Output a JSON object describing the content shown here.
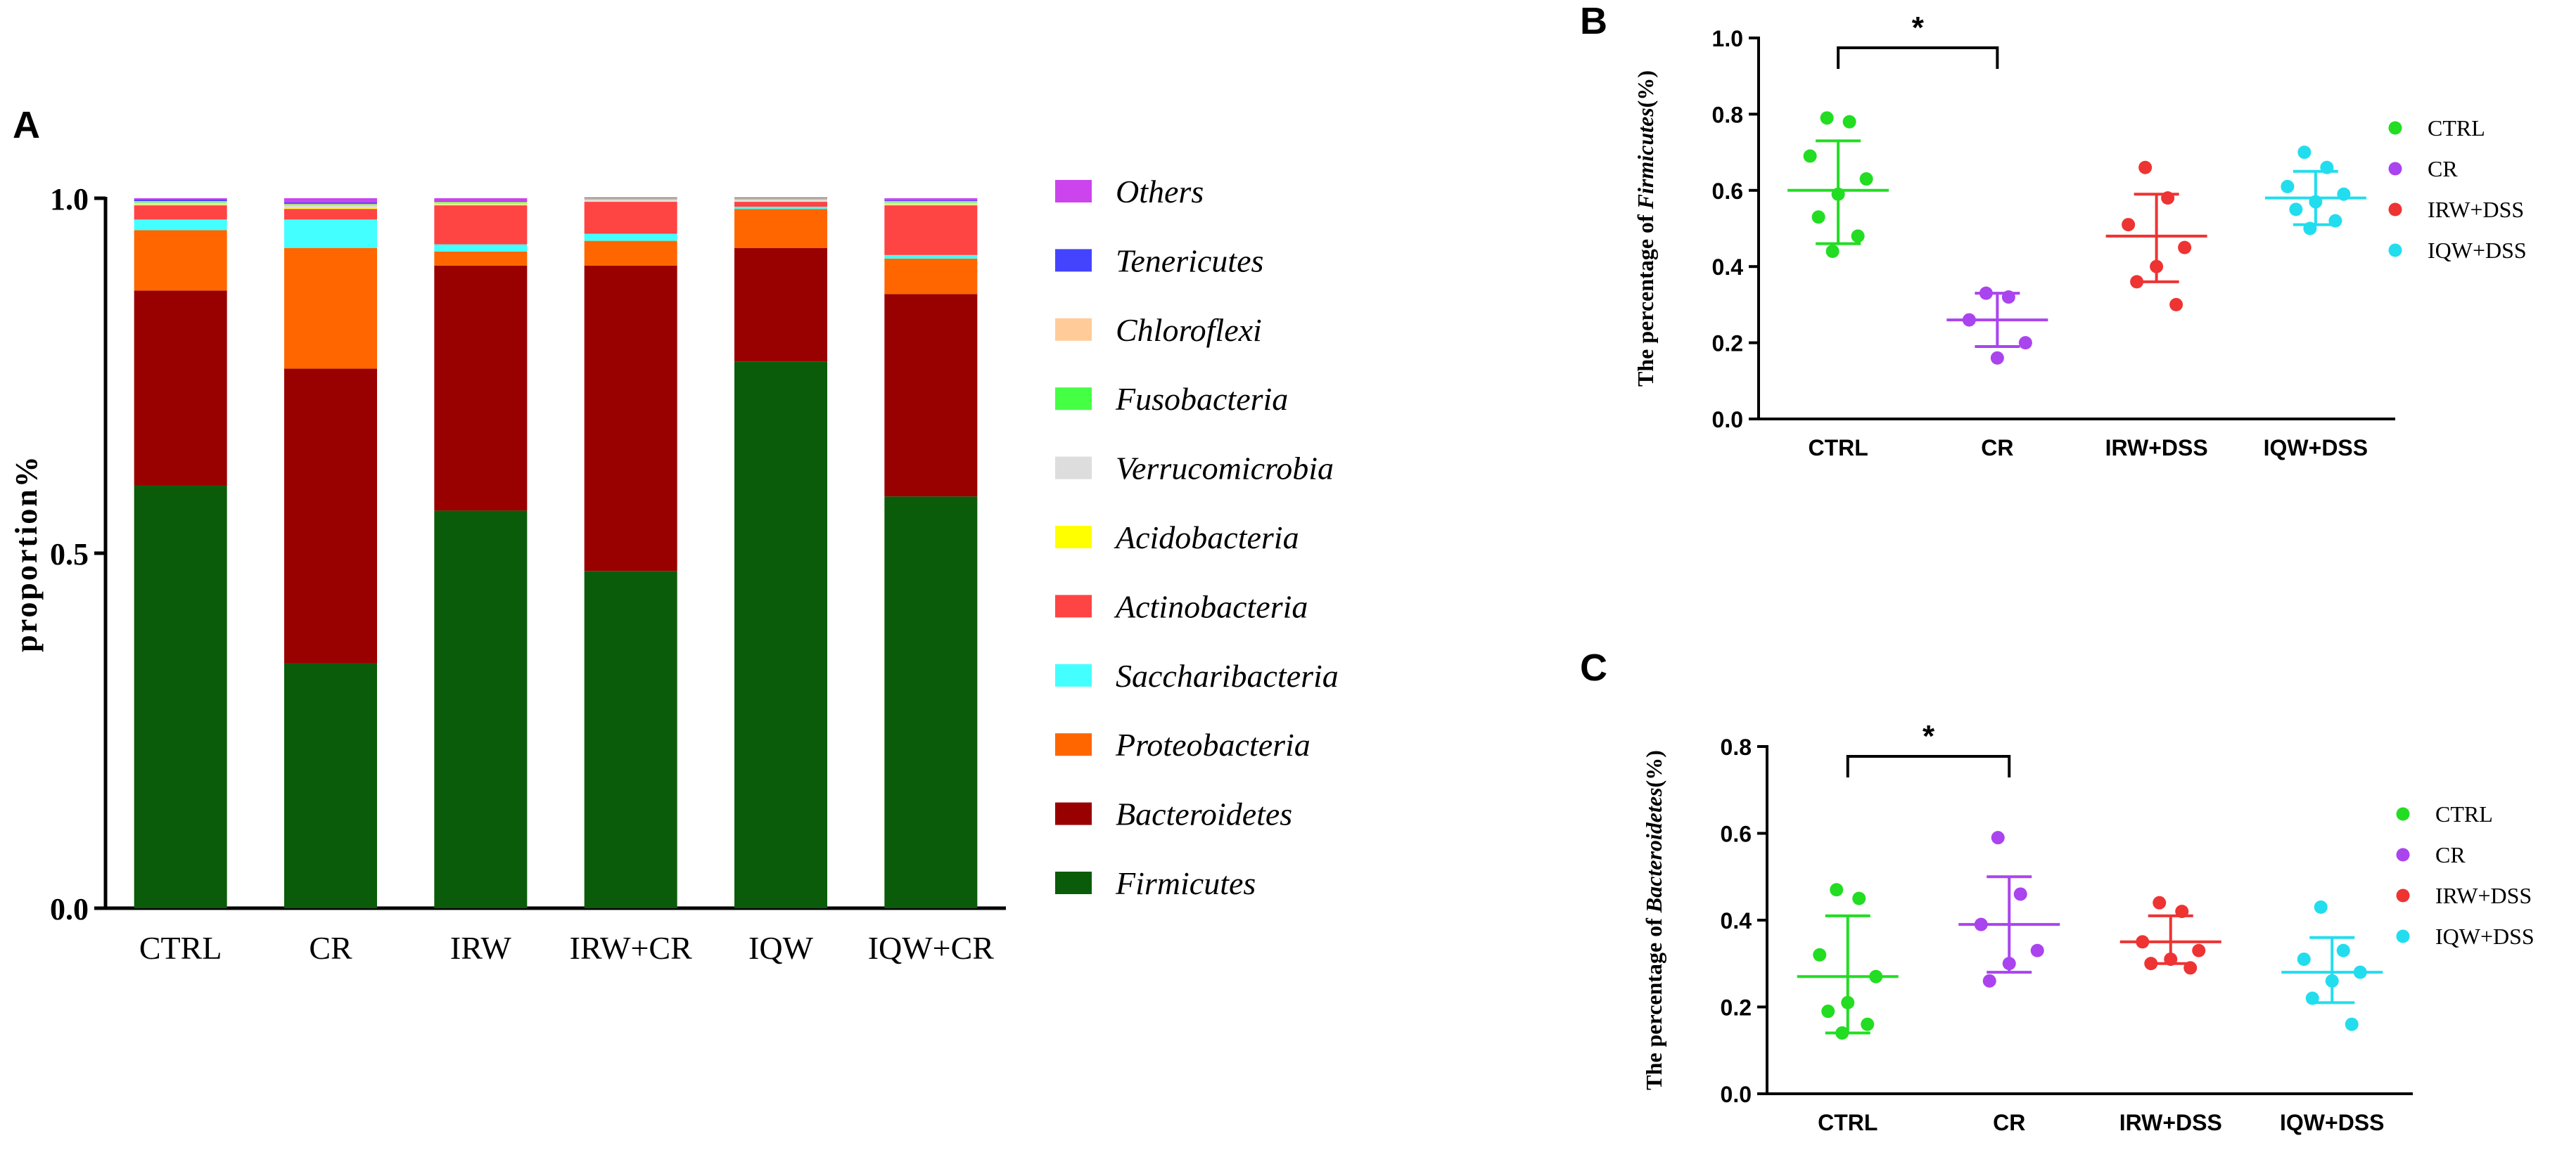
{
  "panels": {
    "a": "A",
    "b": "B",
    "c": "C"
  },
  "chart_data": [
    {
      "id": "A",
      "type": "bar",
      "stacked": true,
      "ylabel": "proportion%",
      "ylim": [
        0,
        1
      ],
      "yticks": [
        "0.0",
        "0.5",
        "1.0"
      ],
      "categories": [
        "CTRL",
        "CR",
        "IRW",
        "IRW+CR",
        "IQW",
        "IQW+CR"
      ],
      "series": [
        {
          "name": "Firmicutes",
          "color": "#0a5c0a",
          "values": [
            0.595,
            0.345,
            0.56,
            0.475,
            0.77,
            0.58
          ]
        },
        {
          "name": "Bacteroidetes",
          "color": "#990000",
          "values": [
            0.275,
            0.415,
            0.345,
            0.43,
            0.16,
            0.285
          ]
        },
        {
          "name": "Proteobacteria",
          "color": "#ff6600",
          "values": [
            0.085,
            0.17,
            0.02,
            0.035,
            0.055,
            0.05
          ]
        },
        {
          "name": "Saccharibacteria",
          "color": "#44ffff",
          "values": [
            0.015,
            0.04,
            0.01,
            0.01,
            0.003,
            0.005
          ]
        },
        {
          "name": "Actinobacteria",
          "color": "#ff4444",
          "values": [
            0.02,
            0.015,
            0.055,
            0.045,
            0.007,
            0.07
          ]
        },
        {
          "name": "Acidobacteria",
          "color": "#ffff00",
          "values": [
            0.001,
            0.001,
            0.001,
            0.001,
            0.001,
            0.001
          ]
        },
        {
          "name": "Verrucomicrobia",
          "color": "#dddddd",
          "values": [
            0.003,
            0.004,
            0.002,
            0.002,
            0.002,
            0.003
          ]
        },
        {
          "name": "Fusobacteria",
          "color": "#44ff44",
          "values": [
            0.001,
            0.001,
            0.001,
            0.001,
            0.001,
            0.001
          ]
        },
        {
          "name": "Chloroflexi",
          "color": "#ffcc99",
          "values": [
            0.001,
            0.001,
            0.001,
            0.001,
            0.001,
            0.001
          ]
        },
        {
          "name": "Tenericutes",
          "color": "#4444ff",
          "values": [
            0.002,
            0.002,
            0.001,
            0.001,
            0.001,
            0.001
          ]
        },
        {
          "name": "Others",
          "color": "#cc44ee",
          "values": [
            0.002,
            0.006,
            0.004,
            0.0,
            0.0,
            0.003
          ]
        }
      ],
      "legend_order": [
        "Others",
        "Tenericutes",
        "Chloroflexi",
        "Fusobacteria",
        "Verrucomicrobia",
        "Acidobacteria",
        "Actinobacteria",
        "Saccharibacteria",
        "Proteobacteria",
        "Bacteroidetes",
        "Firmicutes"
      ]
    },
    {
      "id": "B",
      "type": "scatter",
      "ylabel_prefix": "The percentage of ",
      "ylabel_italic": "Firmicutes",
      "ylabel_suffix": "(%)",
      "ylim": [
        0,
        1.0
      ],
      "yticks": [
        "0.0",
        "0.2",
        "0.4",
        "0.6",
        "0.8",
        "1.0"
      ],
      "categories": [
        "CTRL",
        "CR",
        "IRW+DSS",
        "IQW+DSS"
      ],
      "colors": [
        "#22dd22",
        "#aa44ee",
        "#ee3333",
        "#22ddee"
      ],
      "points": [
        [
          0.79,
          0.78,
          0.69,
          0.63,
          0.59,
          0.53,
          0.48,
          0.44
        ],
        [
          0.33,
          0.32,
          0.26,
          0.2,
          0.16
        ],
        [
          0.66,
          0.58,
          0.51,
          0.45,
          0.4,
          0.36,
          0.3
        ],
        [
          0.7,
          0.66,
          0.61,
          0.59,
          0.57,
          0.55,
          0.52,
          0.5
        ]
      ],
      "mean": [
        0.6,
        0.26,
        0.48,
        0.58
      ],
      "sd_low": [
        0.46,
        0.19,
        0.36,
        0.51
      ],
      "sd_high": [
        0.73,
        0.33,
        0.59,
        0.65
      ],
      "significance": {
        "from": 0,
        "to": 1,
        "label": "*"
      },
      "legend": [
        "CTRL",
        "CR",
        "IRW+DSS",
        "IQW+DSS"
      ]
    },
    {
      "id": "C",
      "type": "scatter",
      "ylabel_prefix": "The percentage of ",
      "ylabel_italic": "Bacteroidetes",
      "ylabel_suffix": "(%)",
      "ylim": [
        0,
        0.8
      ],
      "yticks": [
        "0.0",
        "0.2",
        "0.4",
        "0.6",
        "0.8"
      ],
      "categories": [
        "CTRL",
        "CR",
        "IRW+DSS",
        "IQW+DSS"
      ],
      "colors": [
        "#22dd22",
        "#aa44ee",
        "#ee3333",
        "#22ddee"
      ],
      "points": [
        [
          0.47,
          0.45,
          0.32,
          0.27,
          0.21,
          0.19,
          0.16,
          0.14
        ],
        [
          0.59,
          0.46,
          0.39,
          0.33,
          0.3,
          0.26
        ],
        [
          0.44,
          0.42,
          0.35,
          0.33,
          0.31,
          0.3,
          0.29
        ],
        [
          0.43,
          0.33,
          0.31,
          0.28,
          0.26,
          0.22,
          0.16
        ]
      ],
      "mean": [
        0.27,
        0.39,
        0.35,
        0.28
      ],
      "sd_low": [
        0.14,
        0.28,
        0.3,
        0.21
      ],
      "sd_high": [
        0.41,
        0.5,
        0.41,
        0.36
      ],
      "significance": {
        "from": 0,
        "to": 1,
        "label": "*"
      },
      "legend": [
        "CTRL",
        "CR",
        "IRW+DSS",
        "IQW+DSS"
      ]
    }
  ]
}
